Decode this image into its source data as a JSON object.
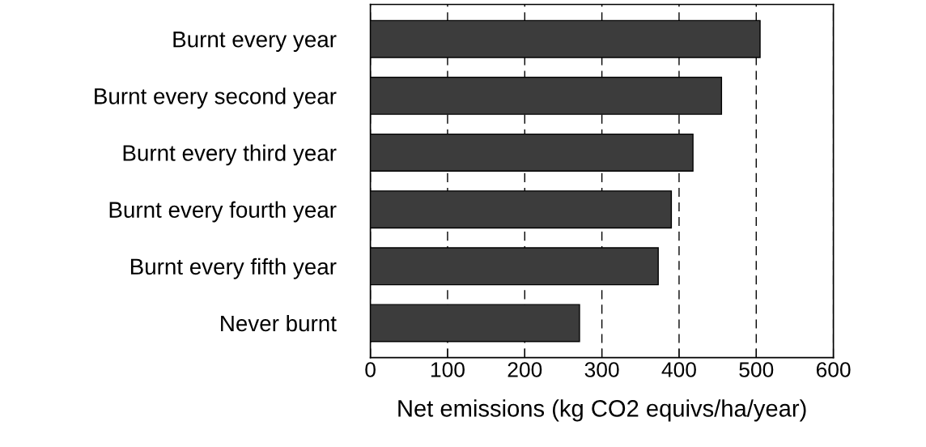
{
  "chart_data": {
    "type": "bar",
    "orientation": "horizontal",
    "categories": [
      "Burnt every year",
      "Burnt every second year",
      "Burnt every third year",
      "Burnt every fourth year",
      "Burnt every fifth year",
      "Never burnt"
    ],
    "values": [
      505,
      455,
      418,
      390,
      373,
      271
    ],
    "color": "#3c3c3c",
    "xlabel": "Net emissions (kg CO2 equivs/ha/year)",
    "xlim": [
      0,
      600
    ],
    "xticks": [
      0,
      100,
      200,
      300,
      400,
      500,
      600
    ],
    "grid": "x",
    "line_style": "dashed"
  }
}
